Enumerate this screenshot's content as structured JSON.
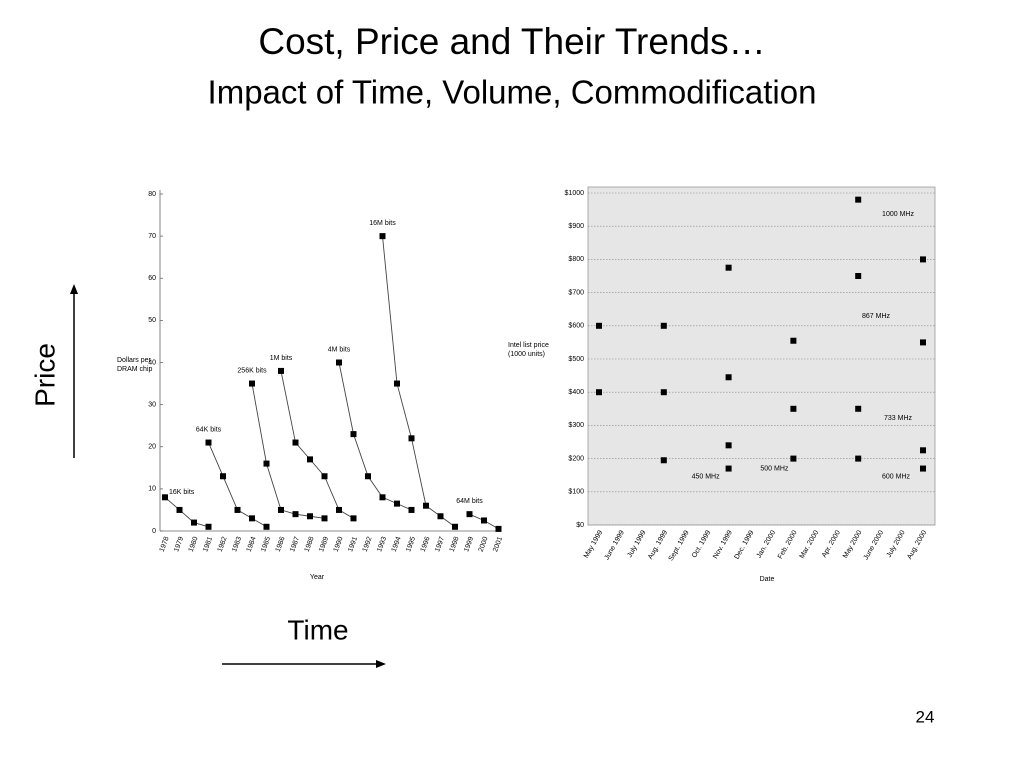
{
  "slide": {
    "title": "Cost, Price and Their Trends…",
    "subtitle": "Impact of Time, Volume, Commodification",
    "y_annotation": "Price",
    "x_annotation": "Time",
    "page_number": "24"
  },
  "chart_data": [
    {
      "type": "line",
      "ylabel": "Dollars per DRAM chip",
      "xlabel": "Year",
      "categories": [
        "1978",
        "1979",
        "1980",
        "1981",
        "1982",
        "1983",
        "1984",
        "1985",
        "1986",
        "1987",
        "1988",
        "1989",
        "1990",
        "1991",
        "1992",
        "1993",
        "1994",
        "1995",
        "1996",
        "1997",
        "1998",
        "1999",
        "2000",
        "2001"
      ],
      "ylim": [
        0,
        80
      ],
      "yticks": [
        0,
        10,
        20,
        30,
        40,
        50,
        60,
        70,
        80
      ],
      "grid": false,
      "background": "#ffffff",
      "series": [
        {
          "name": "16K bits",
          "color": "#444444",
          "values": [
            8,
            5,
            2,
            1,
            null,
            null,
            null,
            null,
            null,
            null,
            null,
            null,
            null,
            null,
            null,
            null,
            null,
            null,
            null,
            null,
            null,
            null,
            null,
            null
          ]
        },
        {
          "name": "64K bits",
          "color": "#444444",
          "values": [
            null,
            null,
            null,
            21,
            13,
            5,
            3,
            1,
            null,
            null,
            null,
            null,
            null,
            null,
            null,
            null,
            null,
            null,
            null,
            null,
            null,
            null,
            null,
            null
          ]
        },
        {
          "name": "256K bits",
          "color": "#444444",
          "values": [
            null,
            null,
            null,
            null,
            null,
            null,
            35,
            16,
            5,
            4,
            3.5,
            3,
            null,
            null,
            null,
            null,
            null,
            null,
            null,
            null,
            null,
            null,
            null,
            null
          ]
        },
        {
          "name": "1M bits",
          "color": "#444444",
          "values": [
            null,
            null,
            null,
            null,
            null,
            null,
            null,
            null,
            38,
            21,
            17,
            13,
            5,
            3,
            null,
            null,
            null,
            null,
            null,
            null,
            null,
            null,
            null,
            null
          ]
        },
        {
          "name": "4M bits",
          "color": "#444444",
          "values": [
            null,
            null,
            null,
            null,
            null,
            null,
            null,
            null,
            null,
            null,
            null,
            null,
            40,
            23,
            13,
            8,
            6.5,
            5,
            null,
            null,
            null,
            null,
            null,
            null
          ]
        },
        {
          "name": "16M bits",
          "color": "#444444",
          "values": [
            null,
            null,
            null,
            null,
            null,
            null,
            null,
            null,
            null,
            null,
            null,
            null,
            null,
            null,
            null,
            70,
            35,
            22,
            6,
            3.5,
            1,
            null,
            null,
            null
          ]
        },
        {
          "name": "64M bits",
          "color": "#444444",
          "values": [
            null,
            null,
            null,
            null,
            null,
            null,
            null,
            null,
            null,
            null,
            null,
            null,
            null,
            null,
            null,
            null,
            null,
            null,
            null,
            null,
            null,
            4,
            2.5,
            0.5
          ]
        }
      ]
    },
    {
      "type": "line",
      "ylabel": "Intel list price (1000 units)",
      "xlabel": "Date",
      "categories": [
        "May 1999",
        "June 1999",
        "July 1999",
        "Aug. 1999",
        "Sept. 1999",
        "Oct. 1999",
        "Nov. 1999",
        "Dec. 1999",
        "Jan. 2000",
        "Feb. 2000",
        "Mar. 2000",
        "Apr. 2000",
        "May 2000",
        "June 2000",
        "July 2000",
        "Aug. 2000"
      ],
      "ylim": [
        0,
        1000
      ],
      "yticks": [
        {
          "value": 0,
          "label": "$0"
        },
        {
          "value": 100,
          "label": "$100"
        },
        {
          "value": 200,
          "label": "$200"
        },
        {
          "value": 300,
          "label": "$300"
        },
        {
          "value": 400,
          "label": "$400"
        },
        {
          "value": 500,
          "label": "$500"
        },
        {
          "value": 600,
          "label": "$600"
        },
        {
          "value": 700,
          "label": "$700"
        },
        {
          "value": 800,
          "label": "$800"
        },
        {
          "value": 900,
          "label": "$900"
        },
        {
          "value": 1000,
          "label": "$1000"
        }
      ],
      "grid": true,
      "background": "#e6e6e6",
      "series": [
        {
          "name": "450 MHz",
          "color": "#333333",
          "values": [
            400,
            null,
            null,
            195,
            null,
            null,
            170,
            null,
            null,
            null,
            null,
            null,
            null,
            null,
            null,
            null
          ]
        },
        {
          "name": "500 MHz",
          "color": "#333333",
          "values": [
            600,
            null,
            null,
            400,
            null,
            null,
            240,
            null,
            null,
            200,
            null,
            null,
            null,
            null,
            null,
            null
          ]
        },
        {
          "name": "600 MHz",
          "color": "#333333",
          "values": [
            null,
            null,
            null,
            600,
            null,
            null,
            445,
            null,
            null,
            350,
            null,
            null,
            200,
            null,
            null,
            170
          ]
        },
        {
          "name": "733 MHz",
          "color": "#333333",
          "values": [
            null,
            null,
            null,
            null,
            null,
            null,
            775,
            null,
            null,
            555,
            null,
            null,
            350,
            null,
            null,
            225
          ]
        },
        {
          "name": "867 MHz",
          "color": "#333333",
          "values": [
            null,
            null,
            null,
            null,
            null,
            null,
            null,
            null,
            null,
            null,
            null,
            null,
            750,
            null,
            null,
            550
          ]
        },
        {
          "name": "1000 MHz",
          "color": "#333333",
          "values": [
            null,
            null,
            null,
            null,
            null,
            null,
            null,
            null,
            null,
            null,
            null,
            null,
            980,
            null,
            null,
            800
          ]
        }
      ]
    }
  ]
}
